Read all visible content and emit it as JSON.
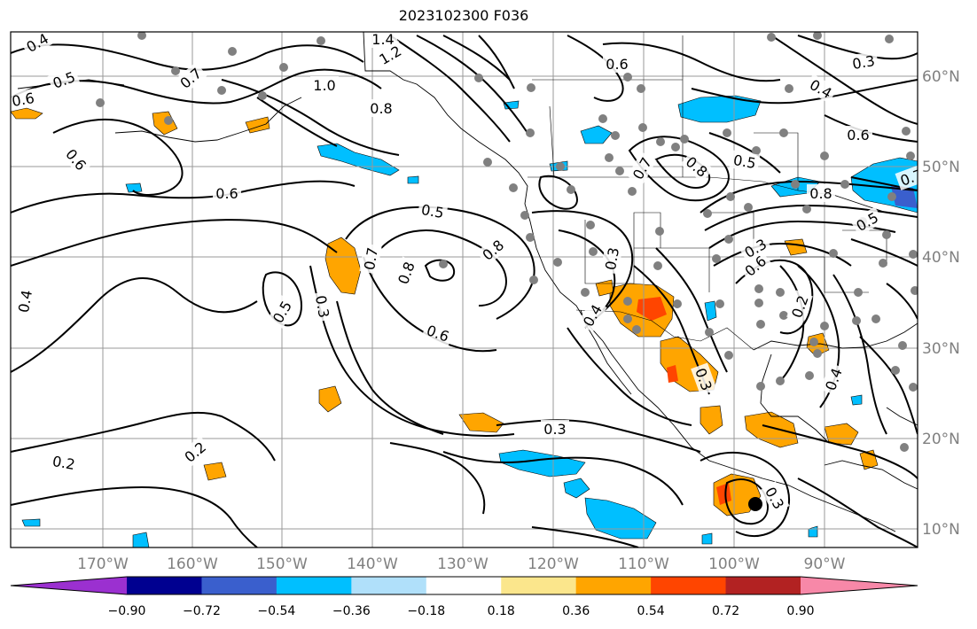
{
  "title": "2023102300 F036",
  "longitude_labels": [
    "170°W",
    "160°W",
    "150°W",
    "140°W",
    "130°W",
    "120°W",
    "110°W",
    "100°W",
    "90°W"
  ],
  "latitude_labels": [
    "10°N",
    "20°N",
    "30°N",
    "40°N",
    "50°N",
    "60°N"
  ],
  "colorbar": {
    "tick_labels": [
      "−0.90",
      "−0.72",
      "−0.54",
      "−0.36",
      "−0.18",
      "0.18",
      "0.36",
      "0.54",
      "0.72",
      "0.90"
    ],
    "colors": [
      "#9b30d0",
      "#000090",
      "#3a5fcd",
      "#00bfff",
      "#b0e0fa",
      "#ffffff",
      "#fbe68c",
      "#ffa500",
      "#ff4500",
      "#b22222",
      "#f788a8"
    ]
  },
  "contour_labels": [
    {
      "text": "0.4"
    },
    {
      "text": "0.5"
    },
    {
      "text": "0.6"
    },
    {
      "text": "0.7"
    },
    {
      "text": "0.6"
    },
    {
      "text": "1.4"
    },
    {
      "text": "1.2"
    },
    {
      "text": "1.0"
    },
    {
      "text": "0.8"
    },
    {
      "text": "0.6"
    },
    {
      "text": "0.5"
    },
    {
      "text": "0.7"
    },
    {
      "text": "0.8"
    },
    {
      "text": "0.6"
    },
    {
      "text": "0.4"
    },
    {
      "text": "0.5"
    },
    {
      "text": "0.3"
    },
    {
      "text": "0.6"
    },
    {
      "text": "0.7"
    },
    {
      "text": "0.5"
    },
    {
      "text": "0.6"
    },
    {
      "text": "0.3"
    },
    {
      "text": "0.4"
    },
    {
      "text": "0.8"
    },
    {
      "text": "0.8"
    },
    {
      "text": "0.3"
    },
    {
      "text": "0.4"
    },
    {
      "text": "0.3"
    },
    {
      "text": "0.2"
    },
    {
      "text": "0.2"
    },
    {
      "text": "0.3"
    },
    {
      "text": "0.3"
    },
    {
      "text": "0.4"
    },
    {
      "text": "0.2"
    },
    {
      "text": "0.8"
    },
    {
      "text": "0.7"
    },
    {
      "text": "0.6"
    },
    {
      "text": "0.3"
    },
    {
      "text": "0.5"
    }
  ],
  "stations_color": "#808080",
  "storm_marker_color": "#000000"
}
